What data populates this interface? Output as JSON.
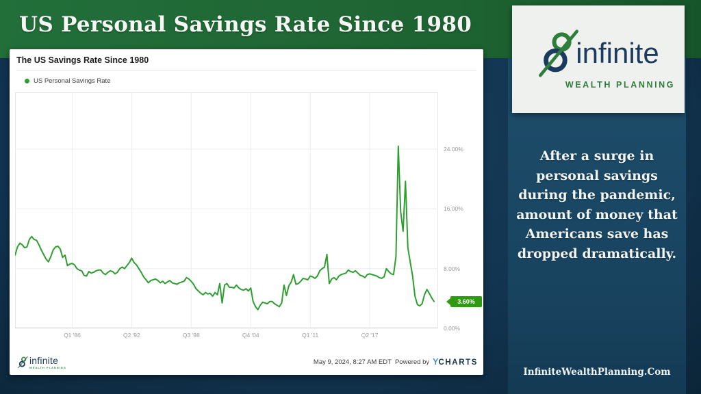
{
  "header": {
    "title": "US Personal Savings Rate Since 1980"
  },
  "chart_card": {
    "title": "The US Savings Rate Since 1980",
    "legend_label": "US Personal Savings Rate",
    "current_value_label": "3.60%",
    "footer": {
      "logo_name": "infinite",
      "logo_sub": "WEALTH PLANNING",
      "timestamp": "May 9, 2024, 8:27 AM EDT",
      "powered_by": "Powered by",
      "ycharts_y": "Y",
      "ycharts_rest": "CHARTS"
    }
  },
  "chart_data": {
    "type": "line",
    "title": "The US Savings Rate Since 1980",
    "series_name": "US Personal Savings Rate",
    "x_start": "1980 Q1",
    "x_end": "2024 Q1",
    "x_frequency": "quarterly",
    "x_tick_labels": [
      "Q1 '86",
      "Q2 '92",
      "Q3 '98",
      "Q4 '04",
      "Q1 '11",
      "Q2 '17"
    ],
    "x_tick_indices": [
      24,
      49,
      74,
      99,
      124,
      149
    ],
    "y_tick_labels": [
      "24.00%",
      "16.00%",
      "8.00%",
      "0.00%"
    ],
    "y_ticks": [
      24,
      16,
      8,
      0
    ],
    "ylim": [
      0,
      31.6
    ],
    "unit": "%",
    "grid": true,
    "legend_position": "top-left",
    "line_color": "#2e9e30",
    "last_value": 3.6,
    "values": [
      9.8,
      10.9,
      11.4,
      11.2,
      10.8,
      10.9,
      11.9,
      12.3,
      11.9,
      11.8,
      11.2,
      10.5,
      9.9,
      9.3,
      8.9,
      9.6,
      10.5,
      10.9,
      11.0,
      10.6,
      9.5,
      9.8,
      8.4,
      8.6,
      8.7,
      8.5,
      8.0,
      7.8,
      7.7,
      7.1,
      7.0,
      7.6,
      7.4,
      7.5,
      7.7,
      7.8,
      7.8,
      7.4,
      7.2,
      7.5,
      7.7,
      7.6,
      7.3,
      7.5,
      8.0,
      8.2,
      8.0,
      8.4,
      8.8,
      9.4,
      8.8,
      8.5,
      8.0,
      7.5,
      6.9,
      6.5,
      6.1,
      6.4,
      6.5,
      6.6,
      6.4,
      6.1,
      6.3,
      6.0,
      6.2,
      6.4,
      6.1,
      6.0,
      5.9,
      6.1,
      6.2,
      6.3,
      6.8,
      6.6,
      6.3,
      5.9,
      5.3,
      5.0,
      4.7,
      4.5,
      4.8,
      4.6,
      4.7,
      4.3,
      4.8,
      4.5,
      6.0,
      3.4,
      5.8,
      6.0,
      5.5,
      5.5,
      5.4,
      5.8,
      5.4,
      5.2,
      5.1,
      5.3,
      5.0,
      5.4,
      3.6,
      2.9,
      2.5,
      3.1,
      3.5,
      3.4,
      3.3,
      3.6,
      3.6,
      3.3,
      3.1,
      2.9,
      3.4,
      5.8,
      4.4,
      5.7,
      6.2,
      7.2,
      5.9,
      6.0,
      6.3,
      6.7,
      6.6,
      6.5,
      7.0,
      6.9,
      6.7,
      7.0,
      7.7,
      8.0,
      8.2,
      9.9,
      6.0,
      6.6,
      6.8,
      6.5,
      7.0,
      7.2,
      7.3,
      7.4,
      7.8,
      7.6,
      7.5,
      7.7,
      7.4,
      7.1,
      7.0,
      6.8,
      7.2,
      7.3,
      7.2,
      7.1,
      7.0,
      6.8,
      6.7,
      6.9,
      8.0,
      7.6,
      7.3,
      7.2,
      9.6,
      24.4,
      15.6,
      13.0,
      19.7,
      10.8,
      8.9,
      7.0,
      4.3,
      3.2,
      3.0,
      3.3,
      4.5,
      5.2,
      4.7,
      4.1,
      3.6
    ]
  },
  "sidebar": {
    "logo_name": "infinite",
    "logo_sub": "WEALTH PLANNING",
    "message": "After a surge in\npersonal savings\nduring the pandemic,\namount of money that\nAmericans save has\ndropped dramatically.",
    "website": "InfiniteWealthPlanning.Com"
  },
  "colors": {
    "header_green": "#1e6332",
    "background_navy": "#123450",
    "sidebar_navy": "#1d4e6c",
    "line_green": "#2e9e30",
    "badge_green": "#2f9b12",
    "ycharts_blue": "#4a90d9",
    "logo_navy": "#1c3a5e",
    "logo_green": "#2e7d3a"
  }
}
